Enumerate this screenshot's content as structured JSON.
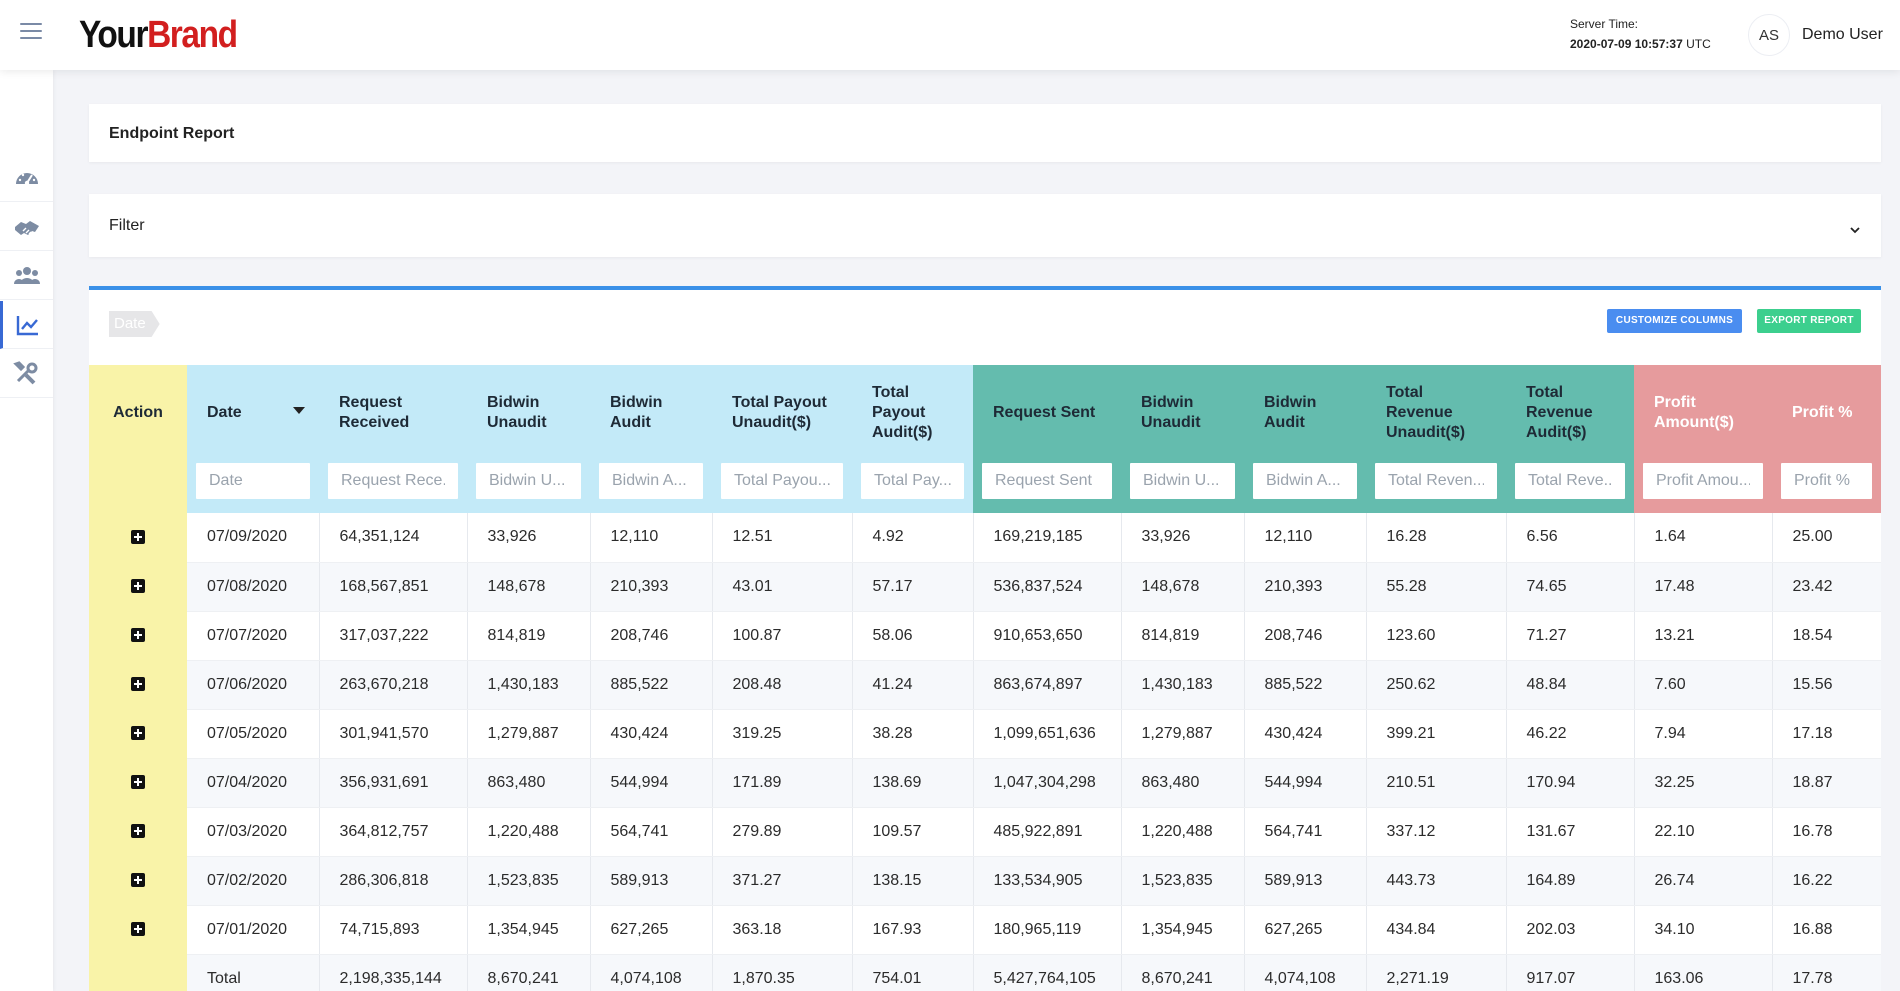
{
  "brand": {
    "part1": "Your",
    "part2": "Brand"
  },
  "server": {
    "label": "Server Time:",
    "value": "2020-07-09 10:57:37",
    "tz": "UTC"
  },
  "user": {
    "initials": "AS",
    "name": "Demo User"
  },
  "sidebar": {
    "items": [
      {
        "icon": "dashboard-gauge-icon"
      },
      {
        "icon": "handshake-icon"
      },
      {
        "icon": "users-icon"
      },
      {
        "icon": "chart-line-icon",
        "active": true
      },
      {
        "icon": "tools-icon"
      }
    ]
  },
  "report_card": {
    "title": "Endpoint Report"
  },
  "filter_card": {
    "label": "Filter"
  },
  "toolbar": {
    "date_chip": "Date",
    "customize_label": "CUSTOMIZE COLUMNS",
    "export_label": "EXPORT REPORT"
  },
  "colors": {
    "blue_header": "#c3eaf8",
    "teal_header": "#64bcae",
    "red_header": "#e69b9d",
    "action_col": "#f9f3a8",
    "accent": "#3a90e8"
  },
  "table": {
    "columns": [
      {
        "label": "Action",
        "group": "action",
        "placeholder": ""
      },
      {
        "label": "Date",
        "group": "blue",
        "placeholder": "Date"
      },
      {
        "label": "Request Received",
        "group": "blue",
        "placeholder": "Request Rece..."
      },
      {
        "label": "Bidwin Unaudit",
        "group": "blue",
        "placeholder": "Bidwin U..."
      },
      {
        "label": "Bidwin Audit",
        "group": "blue",
        "placeholder": "Bidwin A..."
      },
      {
        "label": "Total Payout Unaudit($)",
        "group": "blue",
        "placeholder": "Total Payou..."
      },
      {
        "label": "Total Payout Audit($)",
        "group": "blue",
        "placeholder": "Total Pay..."
      },
      {
        "label": "Request Sent",
        "group": "teal",
        "placeholder": "Request Sent"
      },
      {
        "label": "Bidwin Unaudit",
        "group": "teal",
        "placeholder": "Bidwin U..."
      },
      {
        "label": "Bidwin Audit",
        "group": "teal",
        "placeholder": "Bidwin A..."
      },
      {
        "label": "Total Revenue Unaudit($)",
        "group": "teal",
        "placeholder": "Total Reven..."
      },
      {
        "label": "Total Revenue Audit($)",
        "group": "teal",
        "placeholder": "Total Reve..."
      },
      {
        "label": "Profit Amount($)",
        "group": "red",
        "placeholder": "Profit Amou..."
      },
      {
        "label": "Profit %",
        "group": "red",
        "placeholder": "Profit %"
      }
    ],
    "rows": [
      [
        "07/09/2020",
        "64,351,124",
        "33,926",
        "12,110",
        "12.51",
        "4.92",
        "169,219,185",
        "33,926",
        "12,110",
        "16.28",
        "6.56",
        "1.64",
        "25.00"
      ],
      [
        "07/08/2020",
        "168,567,851",
        "148,678",
        "210,393",
        "43.01",
        "57.17",
        "536,837,524",
        "148,678",
        "210,393",
        "55.28",
        "74.65",
        "17.48",
        "23.42"
      ],
      [
        "07/07/2020",
        "317,037,222",
        "814,819",
        "208,746",
        "100.87",
        "58.06",
        "910,653,650",
        "814,819",
        "208,746",
        "123.60",
        "71.27",
        "13.21",
        "18.54"
      ],
      [
        "07/06/2020",
        "263,670,218",
        "1,430,183",
        "885,522",
        "208.48",
        "41.24",
        "863,674,897",
        "1,430,183",
        "885,522",
        "250.62",
        "48.84",
        "7.60",
        "15.56"
      ],
      [
        "07/05/2020",
        "301,941,570",
        "1,279,887",
        "430,424",
        "319.25",
        "38.28",
        "1,099,651,636",
        "1,279,887",
        "430,424",
        "399.21",
        "46.22",
        "7.94",
        "17.18"
      ],
      [
        "07/04/2020",
        "356,931,691",
        "863,480",
        "544,994",
        "171.89",
        "138.69",
        "1,047,304,298",
        "863,480",
        "544,994",
        "210.51",
        "170.94",
        "32.25",
        "18.87"
      ],
      [
        "07/03/2020",
        "364,812,757",
        "1,220,488",
        "564,741",
        "279.89",
        "109.57",
        "485,922,891",
        "1,220,488",
        "564,741",
        "337.12",
        "131.67",
        "22.10",
        "16.78"
      ],
      [
        "07/02/2020",
        "286,306,818",
        "1,523,835",
        "589,913",
        "371.27",
        "138.15",
        "133,534,905",
        "1,523,835",
        "589,913",
        "443.73",
        "164.89",
        "26.74",
        "16.22"
      ],
      [
        "07/01/2020",
        "74,715,893",
        "1,354,945",
        "627,265",
        "363.18",
        "167.93",
        "180,965,119",
        "1,354,945",
        "627,265",
        "434.84",
        "202.03",
        "34.10",
        "16.88"
      ]
    ],
    "total": [
      "Total",
      "2,198,335,144",
      "8,670,241",
      "4,074,108",
      "1,870.35",
      "754.01",
      "5,427,764,105",
      "8,670,241",
      "4,074,108",
      "2,271.19",
      "917.07",
      "163.06",
      "17.78"
    ]
  }
}
